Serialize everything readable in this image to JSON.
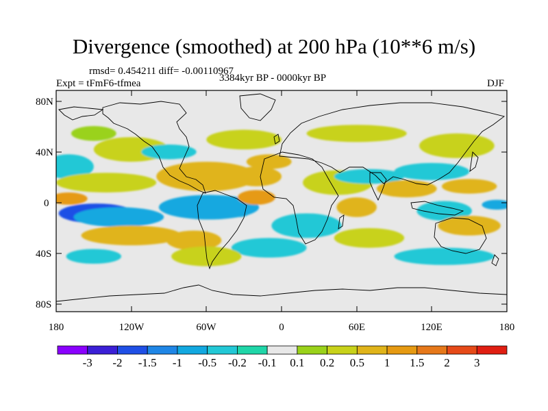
{
  "title": "Divergence (smoothed) at 200 hPa (10**6 m/s)",
  "stats": "rmsd= 0.454211 diff= -0.00110967",
  "period": "3384kyr BP - 0000kyr BP",
  "experiment": "Expt = tFmF6-tfmea",
  "season": "DJF",
  "lat_ticks": [
    "80N",
    "40N",
    "0",
    "40S",
    "80S"
  ],
  "lon_ticks": [
    "180",
    "120W",
    "60W",
    "0",
    "60E",
    "120E",
    "180"
  ],
  "colorbar": {
    "labels": [
      "-3",
      "-2",
      "-1.5",
      "-1",
      "-0.5",
      "-0.2",
      "-0.1",
      "0.1",
      "0.2",
      "0.5",
      "1",
      "1.5",
      "2",
      "3"
    ],
    "colors": [
      "#8a00ff",
      "#3b1fd6",
      "#1f4fe6",
      "#1f86e6",
      "#12a8e0",
      "#22c8d6",
      "#1fd6a8",
      "#e8e8e8",
      "#9ad21a",
      "#c8d21a",
      "#e0b41a",
      "#e69a12",
      "#e6781a",
      "#e64a18",
      "#e01e12"
    ]
  },
  "map_colors": {
    "background": "#e8e8e8",
    "coast": "#000000"
  },
  "field": [
    {
      "v": 0.35,
      "lon": -120,
      "lat": 42,
      "rx": 30,
      "ry": 10
    },
    {
      "v": 0.15,
      "lon": -150,
      "lat": 55,
      "rx": 18,
      "ry": 6
    },
    {
      "v": -0.3,
      "lon": -170,
      "lat": 28,
      "rx": 20,
      "ry": 10
    },
    {
      "v": -0.35,
      "lon": -90,
      "lat": 40,
      "rx": 22,
      "ry": 6
    },
    {
      "v": 0.3,
      "lon": -140,
      "lat": 15,
      "rx": 40,
      "ry": 8
    },
    {
      "v": 1.2,
      "lon": -170,
      "lat": 2,
      "rx": 15,
      "ry": 5
    },
    {
      "v": -1.8,
      "lon": -148,
      "lat": -10,
      "rx": 30,
      "ry": 8
    },
    {
      "v": -1.0,
      "lon": -130,
      "lat": -13,
      "rx": 36,
      "ry": 8
    },
    {
      "v": -0.7,
      "lon": -58,
      "lat": -5,
      "rx": 40,
      "ry": 10
    },
    {
      "v": -1.0,
      "lon": -33,
      "lat": -8,
      "rx": 8,
      "ry": 5
    },
    {
      "v": 0.7,
      "lon": -60,
      "lat": 20,
      "rx": 40,
      "ry": 12
    },
    {
      "v": 1.2,
      "lon": -20,
      "lat": 3,
      "rx": 15,
      "ry": 6
    },
    {
      "v": 0.5,
      "lon": -20,
      "lat": 20,
      "rx": 20,
      "ry": 8
    },
    {
      "v": 0.2,
      "lon": -30,
      "lat": 50,
      "rx": 30,
      "ry": 8
    },
    {
      "v": 0.4,
      "lon": 45,
      "lat": 15,
      "rx": 28,
      "ry": 10
    },
    {
      "v": -0.4,
      "lon": 20,
      "lat": -20,
      "rx": 28,
      "ry": 10
    },
    {
      "v": 0.5,
      "lon": 60,
      "lat": -5,
      "rx": 16,
      "ry": 8
    },
    {
      "v": -0.4,
      "lon": 70,
      "lat": 20,
      "rx": 28,
      "ry": 6
    },
    {
      "v": -0.35,
      "lon": 120,
      "lat": 24,
      "rx": 30,
      "ry": 7
    },
    {
      "v": 0.7,
      "lon": 100,
      "lat": 10,
      "rx": 24,
      "ry": 7
    },
    {
      "v": 0.6,
      "lon": 150,
      "lat": 12,
      "rx": 22,
      "ry": 6
    },
    {
      "v": -0.5,
      "lon": 130,
      "lat": -8,
      "rx": 22,
      "ry": 8
    },
    {
      "v": -0.8,
      "lon": 172,
      "lat": -3,
      "rx": 12,
      "ry": 4
    },
    {
      "v": 0.5,
      "lon": 150,
      "lat": -20,
      "rx": 25,
      "ry": 8
    },
    {
      "v": 0.6,
      "lon": -120,
      "lat": -28,
      "rx": 40,
      "ry": 8
    },
    {
      "v": 0.5,
      "lon": -70,
      "lat": -32,
      "rx": 22,
      "ry": 8
    },
    {
      "v": 0.4,
      "lon": 70,
      "lat": -30,
      "rx": 28,
      "ry": 8
    },
    {
      "v": -0.4,
      "lon": -150,
      "lat": -45,
      "rx": 22,
      "ry": 6
    },
    {
      "v": -0.5,
      "lon": -10,
      "lat": -38,
      "rx": 30,
      "ry": 8
    },
    {
      "v": -0.35,
      "lon": 130,
      "lat": -45,
      "rx": 40,
      "ry": 7
    },
    {
      "v": 0.3,
      "lon": -60,
      "lat": -45,
      "rx": 28,
      "ry": 8
    },
    {
      "v": 0.4,
      "lon": 140,
      "lat": 45,
      "rx": 30,
      "ry": 10
    },
    {
      "v": 0.2,
      "lon": 60,
      "lat": 55,
      "rx": 40,
      "ry": 7
    },
    {
      "v": 0.6,
      "lon": -10,
      "lat": 32,
      "rx": 18,
      "ry": 6
    }
  ]
}
